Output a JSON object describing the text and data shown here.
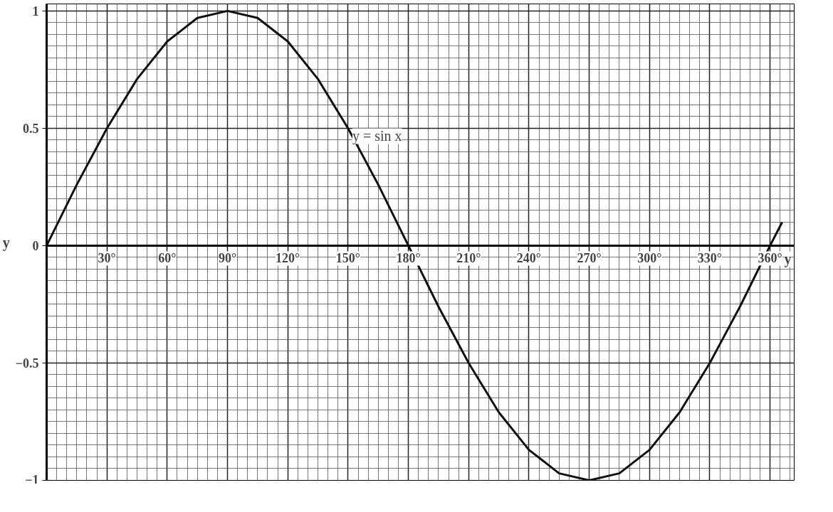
{
  "chart_data": {
    "type": "line",
    "xlabel": "y",
    "ylabel": "y",
    "x": [
      0,
      15,
      30,
      45,
      60,
      75,
      90,
      105,
      120,
      135,
      150,
      165,
      180,
      195,
      210,
      225,
      240,
      255,
      270,
      285,
      300,
      315,
      330,
      345,
      360,
      366
    ],
    "series": [
      {
        "color": "#111111",
        "values": [
          0,
          0.26,
          0.5,
          0.71,
          0.87,
          0.97,
          1,
          0.97,
          0.87,
          0.71,
          0.5,
          0.26,
          0,
          -0.26,
          -0.5,
          -0.71,
          -0.87,
          -0.97,
          -1,
          -0.97,
          -0.87,
          -0.71,
          -0.5,
          -0.26,
          0,
          0.1
        ]
      }
    ],
    "xlim": [
      0,
      372
    ],
    "ylim": [
      -1,
      1.03
    ],
    "xticks": [
      {
        "value": 30,
        "label": "30°"
      },
      {
        "value": 60,
        "label": "60°"
      },
      {
        "value": 90,
        "label": "90°"
      },
      {
        "value": 120,
        "label": "120°"
      },
      {
        "value": 150,
        "label": "150°"
      },
      {
        "value": 180,
        "label": "180°"
      },
      {
        "value": 210,
        "label": "210°"
      },
      {
        "value": 240,
        "label": "240°"
      },
      {
        "value": 270,
        "label": "270°"
      },
      {
        "value": 300,
        "label": "300°"
      },
      {
        "value": 330,
        "label": "330°"
      },
      {
        "value": 360,
        "label": "360°"
      }
    ],
    "yticks": [
      -1,
      -0.5,
      0,
      0.5,
      1
    ],
    "annotations": [
      {
        "text": "y = sin x",
        "x": 150,
        "y": 0.5
      }
    ],
    "grid": true,
    "marker": "none",
    "line_style": "solid"
  }
}
